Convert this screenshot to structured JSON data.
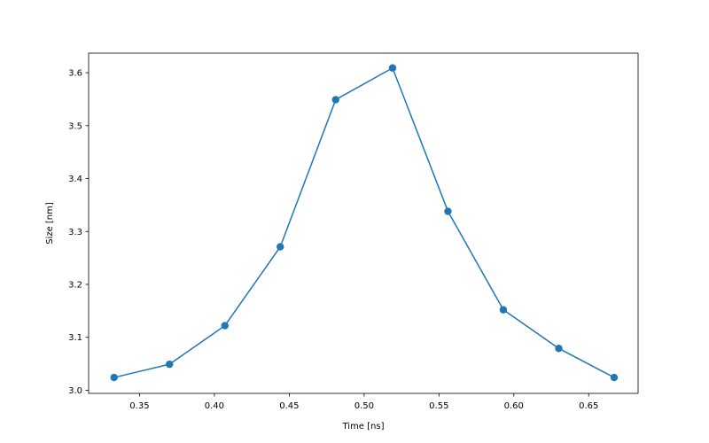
{
  "chart_data": {
    "type": "line",
    "xlabel": "Time [ns]",
    "ylabel": "Size [nm]",
    "xlim": [
      0.316,
      0.683
    ],
    "ylim": [
      2.994,
      3.637
    ],
    "xticks": [
      0.35,
      0.4,
      0.45,
      0.5,
      0.55,
      0.6,
      0.65
    ],
    "xtick_labels": [
      "0.35",
      "0.40",
      "0.45",
      "0.50",
      "0.55",
      "0.60",
      "0.65"
    ],
    "yticks": [
      3.0,
      3.1,
      3.2,
      3.3,
      3.4,
      3.5,
      3.6
    ],
    "ytick_labels": [
      "3.0",
      "3.1",
      "3.2",
      "3.3",
      "3.4",
      "3.5",
      "3.6"
    ],
    "grid": false,
    "series": [
      {
        "color": "#1f77b4",
        "marker": "circle",
        "x": [
          0.333,
          0.37,
          0.407,
          0.444,
          0.481,
          0.519,
          0.556,
          0.593,
          0.63,
          0.667
        ],
        "y": [
          3.024,
          3.049,
          3.122,
          3.271,
          3.549,
          3.609,
          3.338,
          3.152,
          3.079,
          3.024
        ]
      }
    ]
  }
}
